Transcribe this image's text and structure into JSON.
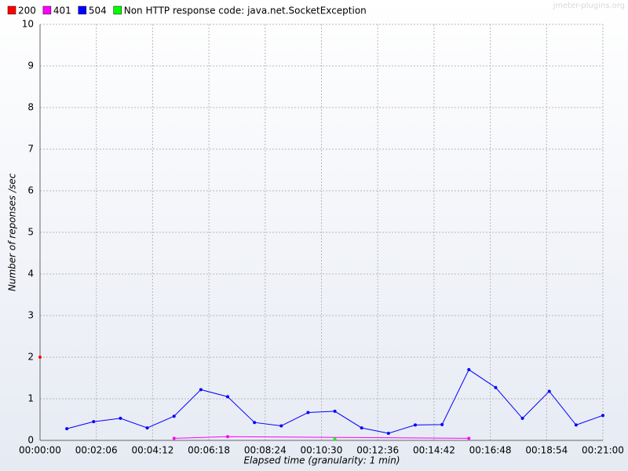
{
  "chart_data": {
    "type": "line",
    "x_label": "Elapsed time (granularity: 1 min)",
    "y_label": "Number of reponses /sec",
    "watermark": "jmeter-plugins.org",
    "xlim": [
      0,
      1260
    ],
    "xticks": [
      {
        "value": 0,
        "label": "00:00:00"
      },
      {
        "value": 126,
        "label": "00:02:06"
      },
      {
        "value": 252,
        "label": "00:04:12"
      },
      {
        "value": 378,
        "label": "00:06:18"
      },
      {
        "value": 504,
        "label": "00:08:24"
      },
      {
        "value": 630,
        "label": "00:10:30"
      },
      {
        "value": 756,
        "label": "00:12:36"
      },
      {
        "value": 882,
        "label": "00:14:42"
      },
      {
        "value": 1008,
        "label": "00:16:48"
      },
      {
        "value": 1134,
        "label": "00:18:54"
      },
      {
        "value": 1260,
        "label": "00:21:00"
      }
    ],
    "ylim": [
      0,
      10
    ],
    "yticks": [
      0,
      1,
      2,
      3,
      4,
      5,
      6,
      7,
      8,
      9,
      10
    ],
    "grid": true,
    "legend": "top",
    "series": [
      {
        "name": "200",
        "color": "#ff0000",
        "x": [
          0
        ],
        "values": [
          2
        ]
      },
      {
        "name": "401",
        "color": "#ff00ff",
        "x": [
          300,
          420,
          960
        ],
        "values": [
          0.05,
          0.09,
          0.05
        ]
      },
      {
        "name": "504",
        "color": "#0000ff",
        "x": [
          60,
          120,
          180,
          240,
          300,
          360,
          420,
          480,
          540,
          600,
          660,
          720,
          780,
          840,
          900,
          960,
          1020,
          1080,
          1140,
          1200,
          1260
        ],
        "values": [
          0.28,
          0.45,
          0.53,
          0.3,
          0.58,
          1.22,
          1.05,
          0.43,
          0.35,
          0.67,
          0.7,
          0.3,
          0.17,
          0.37,
          0.38,
          1.7,
          1.27,
          0.53,
          1.18,
          0.37,
          0.6
        ]
      },
      {
        "name": "Non HTTP response code: java.net.SocketException",
        "color": "#00ff00",
        "x": [
          660
        ],
        "values": [
          0.03
        ]
      }
    ]
  }
}
